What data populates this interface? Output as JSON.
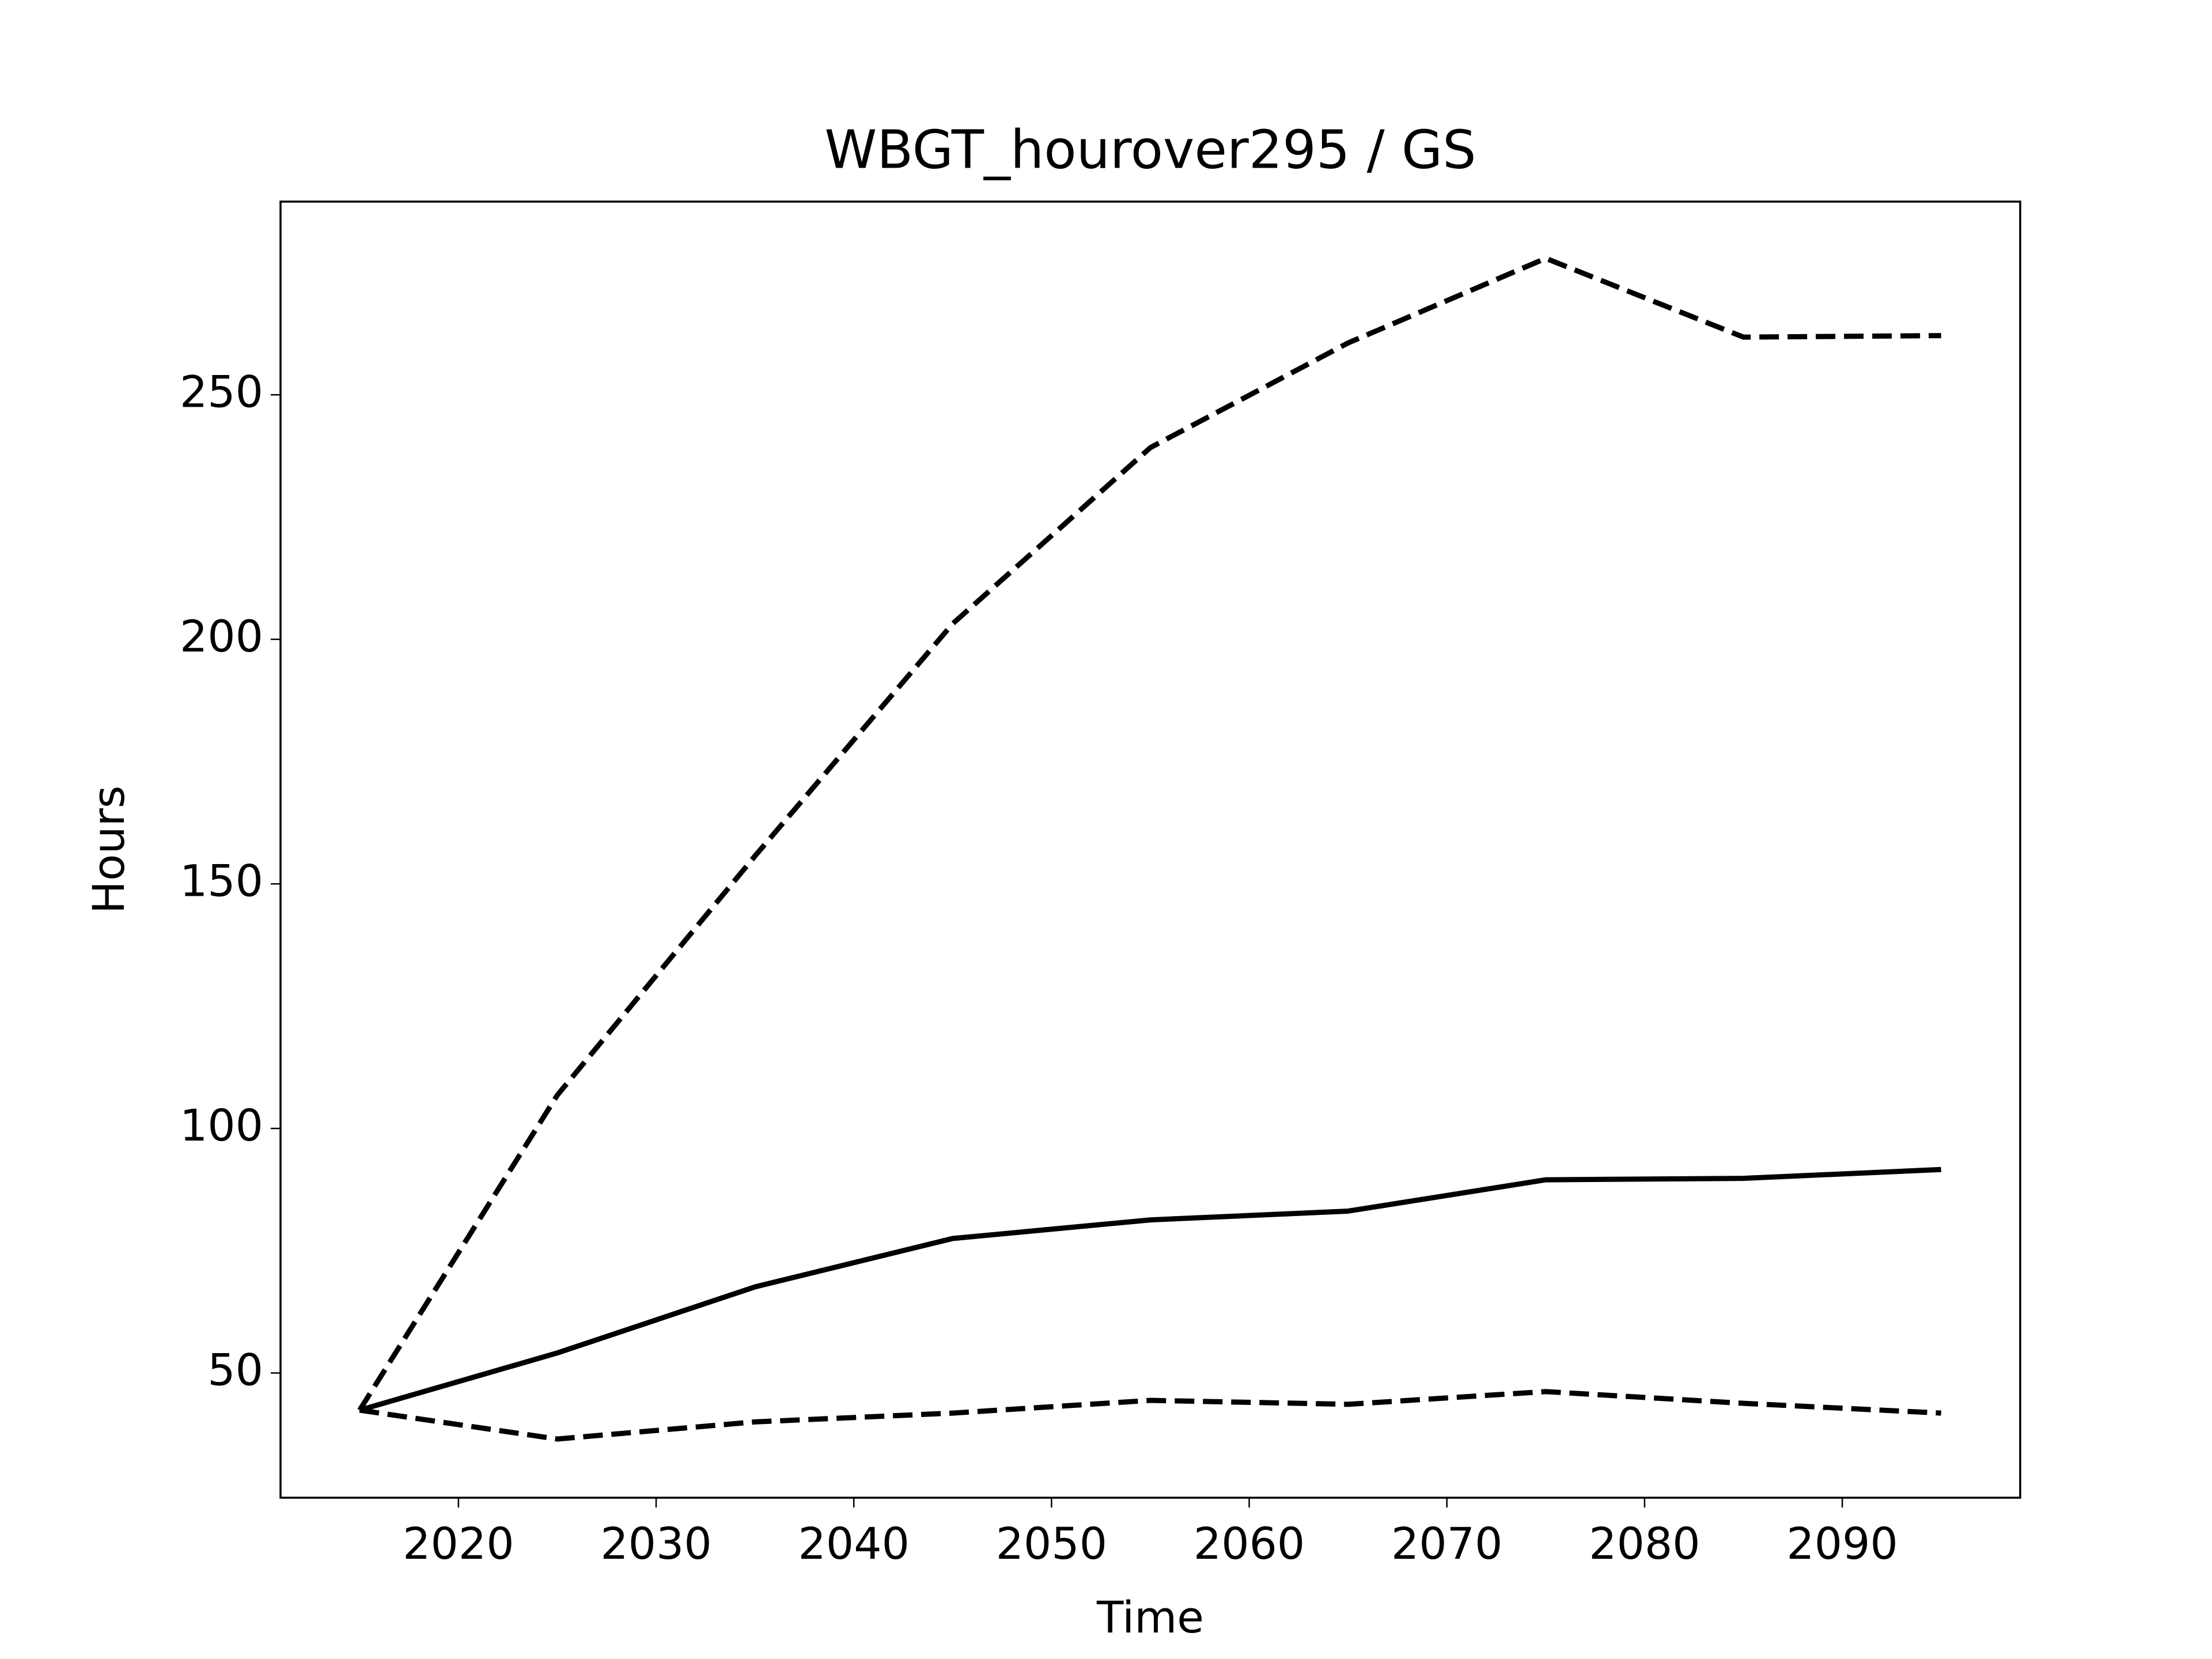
{
  "chart_data": {
    "type": "line",
    "title": "WBGT_hourover295 / GS",
    "x_label": "Time",
    "y_label": "Hours",
    "x": [
      2015,
      2025,
      2035,
      2045,
      2055,
      2065,
      2075,
      2085,
      2095
    ],
    "series": [
      {
        "color": "#000000",
        "linestyle": "dashed",
        "values": [
          42.4,
          106.8,
          155.7,
          203.2,
          239.2,
          260.6,
          277.9,
          261.8,
          262.1
        ]
      },
      {
        "color": "#000000",
        "linestyle": "solid",
        "values": [
          42.4,
          54.1,
          67.6,
          77.5,
          81.3,
          83.1,
          89.5,
          89.8,
          91.6
        ]
      },
      {
        "color": "#000000",
        "linestyle": "dashed",
        "values": [
          42.4,
          36.5,
          40.0,
          41.8,
          44.4,
          43.6,
          46.2,
          43.8,
          41.8
        ]
      }
    ],
    "xlim": [
      2011,
      2099
    ],
    "xticks": [
      2020,
      2030,
      2040,
      2050,
      2060,
      2070,
      2080,
      2090
    ],
    "ylim": [
      24.5,
      289.5
    ],
    "yticks": [
      50,
      100,
      150,
      200,
      250
    ],
    "grid": false
  }
}
